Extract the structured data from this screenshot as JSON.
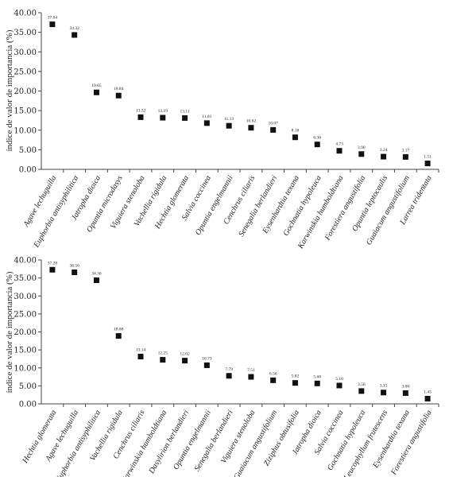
{
  "chart_data": [
    {
      "type": "scatter",
      "ylabel": "índice de valor de importancia (%)",
      "ylim": [
        0,
        40
      ],
      "yticks": [
        "0.00",
        "5.00",
        "10.00",
        "15.00",
        "20.00",
        "25.00",
        "30.00",
        "35.00",
        "40.00"
      ],
      "grid": false,
      "categories": [
        "Agave lechuguilla",
        "Euphorbia antisyphilitica",
        "Jatropha dioica",
        "Opuntia microdasys",
        "Viguiera stenoloba",
        "Vachellia rigidula",
        "Hechtia glomerata",
        "Salvia coccinea",
        "Opuntia engelmannii",
        "Cenchrus ciliaris",
        "Senegalia berlandieri",
        "Eysenhardtia texana",
        "Gochnatia hypoleuca",
        "Karwinskia humboldtiana",
        "Forestiera angustifolia",
        "Opuntia leptocaulis",
        "Guaiacum angustifolium",
        "Larrea tridentata"
      ],
      "values": [
        37.04,
        34.32,
        19.65,
        18.84,
        13.32,
        13.19,
        13.11,
        11.81,
        11.13,
        10.62,
        10.07,
        8.18,
        6.36,
        4.73,
        3.9,
        3.24,
        3.17,
        1.51
      ],
      "value_labels": [
        "37.04",
        "34.32",
        "19.65",
        "18.84",
        "13.32",
        "13.19",
        "13.11",
        "11.81",
        "11.13",
        "10.62",
        "10.07",
        "8.18",
        "6.36",
        "4.73",
        "3.90",
        "3.24",
        "3.17",
        "1.51"
      ]
    },
    {
      "type": "scatter",
      "ylabel": "índice de valor de importancia (%)",
      "ylim": [
        0,
        40
      ],
      "yticks": [
        "0.00",
        "5.00",
        "10.00",
        "15.00",
        "20.00",
        "25.00",
        "30.00",
        "35.00",
        "40.00"
      ],
      "grid": false,
      "categories": [
        "Hechtia glomerata",
        "Agave lechuguilla",
        "Euphorbia antisyphilitica",
        "Vachellia rigidula",
        "Cenchrus ciliaris",
        "Karwinskia humboldtiana",
        "Dasylirion berlandieri",
        "Opuntia engelmannii",
        "Senegalia berlandieri",
        "Viguiera stenoloba",
        "Guaiacum angustifolium",
        "Ziziphus obtusifolia",
        "Jatropha dioica",
        "Salvia coccinea",
        "Gochnatia hypoleuca",
        "Leucophyllum frutescens",
        "Eysenhardtia texana",
        "Forestiera angustifolia"
      ],
      "values": [
        37.28,
        36.56,
        34.36,
        18.88,
        13.14,
        12.25,
        12.02,
        10.73,
        7.79,
        7.51,
        6.56,
        5.82,
        5.68,
        5.1,
        3.56,
        3.15,
        3.0,
        1.45
      ],
      "value_labels": [
        "37.28",
        "36.56",
        "34.36",
        "18.88",
        "13.14",
        "12.25",
        "12.02",
        "10.73",
        "7.79",
        "7.51",
        "6.56",
        "5.82",
        "5.68",
        "5.10",
        "3.56",
        "3.15",
        "3.00",
        "1.45"
      ]
    }
  ]
}
